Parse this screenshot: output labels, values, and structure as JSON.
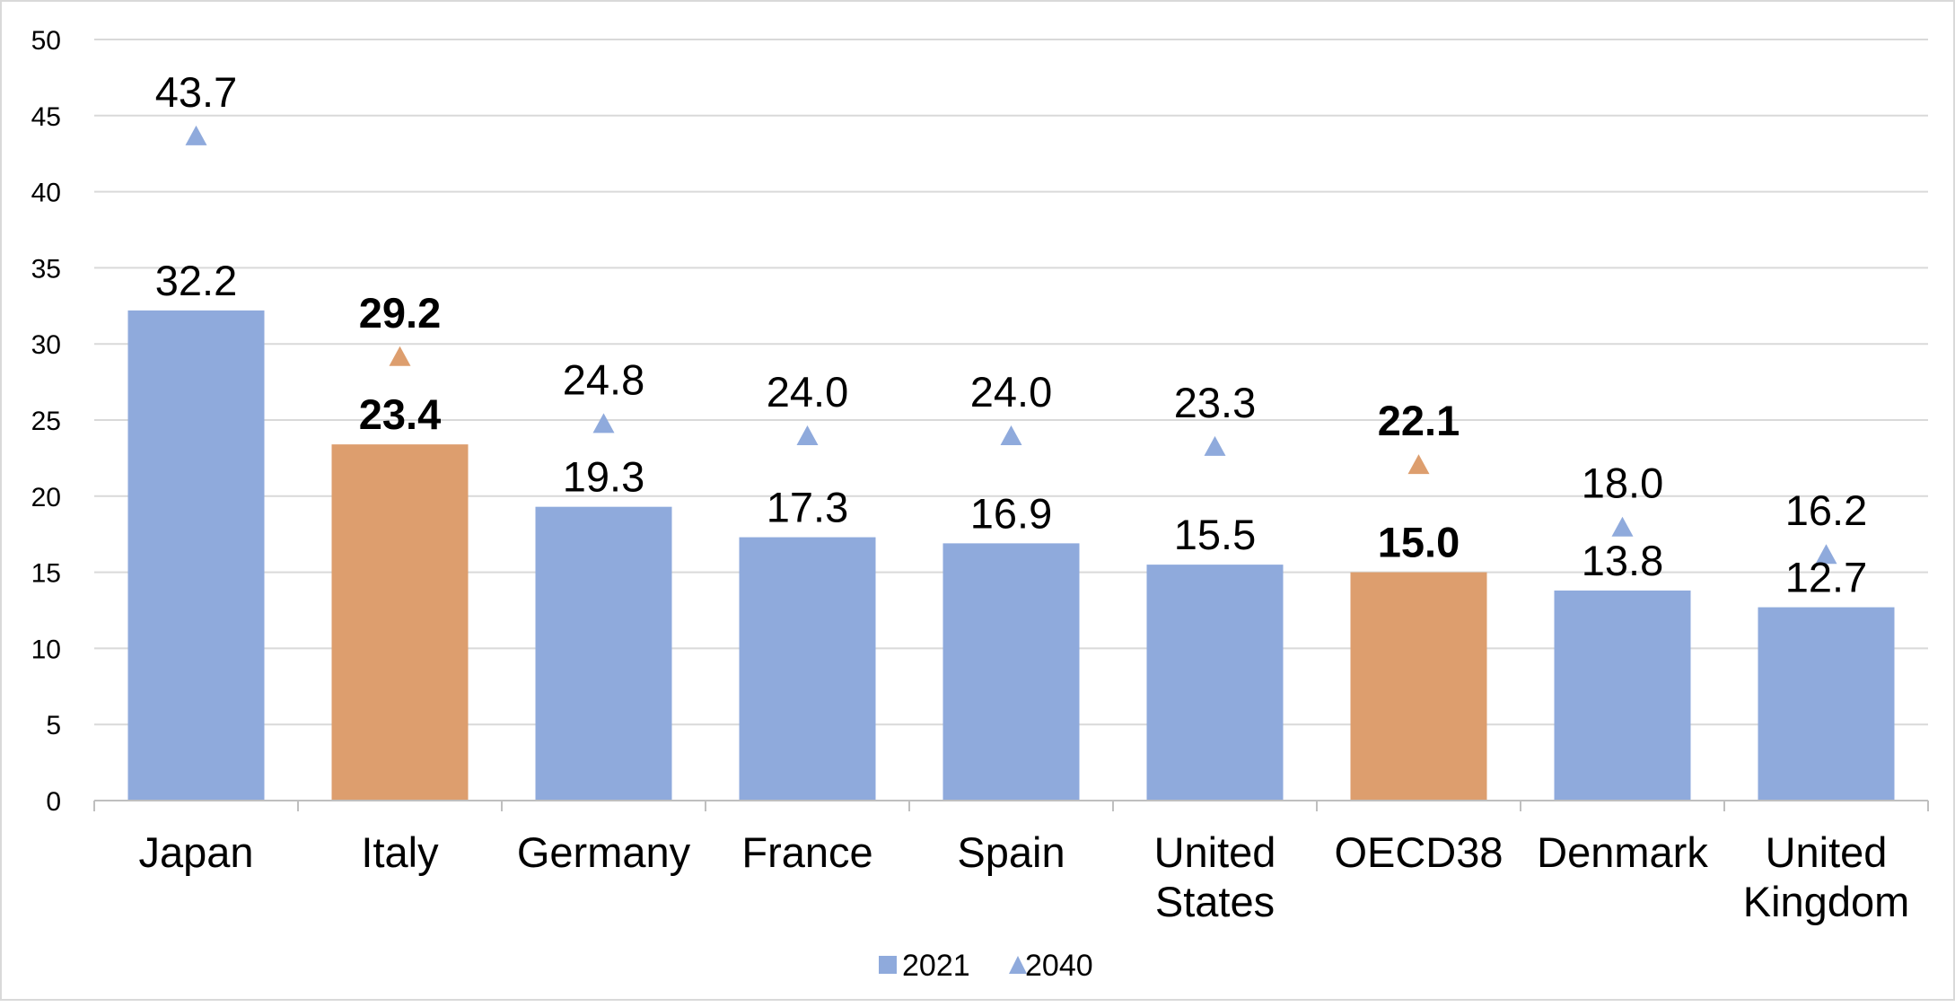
{
  "chart_data": {
    "type": "bar",
    "title": "",
    "xlabel": "",
    "ylabel": "",
    "ylim": [
      0,
      50
    ],
    "yticks": [
      0,
      5,
      10,
      15,
      20,
      25,
      30,
      35,
      40,
      45,
      50
    ],
    "grid": true,
    "legend_position": "bottom",
    "categories": [
      [
        "Japan"
      ],
      [
        "Italy"
      ],
      [
        "Germany"
      ],
      [
        "France"
      ],
      [
        "Spain"
      ],
      [
        "United",
        "States"
      ],
      [
        "OECD38"
      ],
      [
        "Denmark"
      ],
      [
        "United",
        "Kingdom"
      ]
    ],
    "highlighted": [
      false,
      true,
      false,
      false,
      false,
      false,
      true,
      false,
      false
    ],
    "series": [
      {
        "name": "2021",
        "marker": "bar",
        "values": [
          32.2,
          23.4,
          19.3,
          17.3,
          16.9,
          15.5,
          15.0,
          13.8,
          12.7
        ]
      },
      {
        "name": "2040",
        "marker": "triangle",
        "values": [
          43.7,
          29.2,
          24.8,
          24.0,
          24.0,
          23.3,
          22.1,
          18.0,
          16.2
        ]
      }
    ],
    "colors": {
      "bar": "#8faadc",
      "bar_highlight": "#dd9e6e",
      "triangle": "#8faadc",
      "triangle_highlight": "#dd9e6e",
      "grid": "#d9d9d9",
      "axis": "#bfbfbf"
    }
  }
}
